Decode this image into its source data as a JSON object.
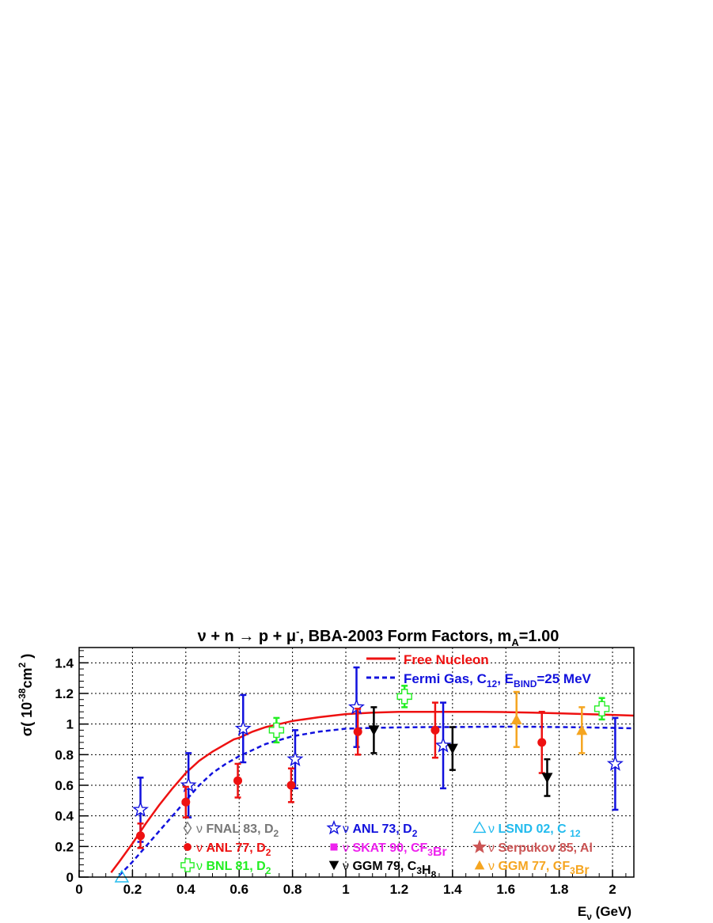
{
  "chart_data": {
    "type": "scatter",
    "title": "ν + n → p + μ⁻, BBA-2003 Form Factors, m_A=1.00",
    "title_parts": {
      "lhs": "ν + n → p + μ",
      "sup": "-",
      "rest": ", BBA-2003 Form Factors, m",
      "sub": "A",
      "tail": "=1.00"
    },
    "xlabel": "E_ν (GeV)",
    "xlabel_parts": {
      "main": "E",
      "sub": "ν",
      "unit": " (GeV)"
    },
    "ylabel": "σ( 10^-38 cm^2 )",
    "ylabel_parts": {
      "pre": "σ( 10",
      "sup1": "-38",
      "mid": "cm",
      "sup2": "2",
      "post": " )"
    },
    "xlim": [
      0,
      2.08
    ],
    "ylim": [
      0,
      1.5
    ],
    "x_ticks": [
      "0",
      "0.2",
      "0.4",
      "0.6",
      "0.8",
      "1",
      "1.2",
      "1.4",
      "1.6",
      "1.8",
      "2"
    ],
    "y_ticks": [
      "0",
      "0.2",
      "0.4",
      "0.6",
      "0.8",
      "1",
      "1.2",
      "1.4"
    ],
    "x_tick_values": [
      0,
      0.2,
      0.4,
      0.6,
      0.8,
      1.0,
      1.2,
      1.4,
      1.6,
      1.8,
      2.0
    ],
    "y_tick_values": [
      0,
      0.2,
      0.4,
      0.6,
      0.8,
      1.0,
      1.2,
      1.4
    ],
    "grid": true,
    "curves": [
      {
        "name": "Free Nucleon",
        "color": "#ee1111",
        "style": "solid",
        "x": [
          0.12,
          0.15,
          0.2,
          0.25,
          0.3,
          0.35,
          0.4,
          0.45,
          0.5,
          0.55,
          0.58,
          0.6,
          0.65,
          0.7,
          0.75,
          0.8,
          0.9,
          1.0,
          1.1,
          1.2,
          1.3,
          1.4,
          1.5,
          1.6,
          1.7,
          1.8,
          1.9,
          2.0,
          2.08
        ],
        "y": [
          0.03,
          0.1,
          0.22,
          0.35,
          0.47,
          0.58,
          0.68,
          0.76,
          0.82,
          0.87,
          0.9,
          0.91,
          0.95,
          0.98,
          1.0,
          1.02,
          1.045,
          1.065,
          1.075,
          1.08,
          1.08,
          1.08,
          1.08,
          1.078,
          1.075,
          1.07,
          1.065,
          1.06,
          1.055
        ]
      },
      {
        "name": "Fermi Gas, C_12, E_BIND=25 MeV",
        "color": "#1111dd",
        "style": "dashed",
        "x": [
          0.15,
          0.2,
          0.25,
          0.3,
          0.35,
          0.4,
          0.45,
          0.5,
          0.55,
          0.6,
          0.7,
          0.8,
          0.9,
          1.0,
          1.1,
          1.2,
          1.3,
          1.4,
          1.5,
          1.6,
          1.7,
          1.8,
          1.9,
          2.0,
          2.08
        ],
        "y": [
          0.01,
          0.1,
          0.2,
          0.3,
          0.4,
          0.5,
          0.6,
          0.68,
          0.74,
          0.79,
          0.87,
          0.92,
          0.95,
          0.97,
          0.975,
          0.978,
          0.98,
          0.98,
          0.982,
          0.983,
          0.982,
          0.98,
          0.978,
          0.975,
          0.972
        ]
      }
    ],
    "series": [
      {
        "name": "ANL 73, D₂",
        "color": "#1111dd",
        "marker": "open-star",
        "points": [
          [
            0.23,
            0.44,
            0.21
          ],
          [
            0.41,
            0.6,
            0.21
          ],
          [
            0.615,
            0.97,
            0.22
          ],
          [
            0.81,
            0.77,
            0.19
          ],
          [
            1.04,
            1.11,
            0.26
          ],
          [
            1.365,
            0.86,
            0.28
          ],
          [
            2.01,
            0.74,
            0.3
          ]
        ]
      },
      {
        "name": "ANL 77, D₂",
        "color": "#ee1111",
        "marker": "filled-circle",
        "points": [
          [
            0.23,
            0.27,
            0.08
          ],
          [
            0.4,
            0.49,
            0.1
          ],
          [
            0.595,
            0.63,
            0.11
          ],
          [
            0.795,
            0.6,
            0.11
          ],
          [
            1.045,
            0.95,
            0.15
          ],
          [
            1.335,
            0.96,
            0.18
          ],
          [
            1.735,
            0.88,
            0.2
          ]
        ]
      },
      {
        "name": "BNL 81, D₂",
        "color": "#22ee22",
        "marker": "open-cross",
        "points": [
          [
            0.74,
            0.96,
            0.08
          ],
          [
            1.22,
            1.18,
            0.07
          ],
          [
            1.96,
            1.1,
            0.07
          ]
        ]
      },
      {
        "name": "GGM 79, C₃H₈",
        "color": "#000000",
        "marker": "filled-triangle-down",
        "points": [
          [
            1.105,
            0.96,
            0.15
          ],
          [
            1.4,
            0.84,
            0.14
          ],
          [
            1.755,
            0.65,
            0.12
          ]
        ]
      },
      {
        "name": "GGM 77, CF₃Br",
        "color": "#f5a520",
        "marker": "filled-triangle-up",
        "points": [
          [
            1.64,
            1.03,
            0.18
          ],
          [
            1.885,
            0.96,
            0.15
          ]
        ]
      },
      {
        "name": "LSND 02, C₁₂",
        "color": "#22bbee",
        "marker": "open-triangle-up",
        "points": [
          [
            0.16,
            0.0,
            0.0
          ]
        ]
      }
    ],
    "legend_top": [
      {
        "label_main": "Free Nucleon",
        "color": "#ee1111",
        "style": "solid"
      },
      {
        "label_main": "Fermi Gas, C",
        "sub1": "12",
        "mid": ", E",
        "sub2": "BIND",
        "tail": "=25 MeV",
        "color": "#1111dd",
        "style": "dashed"
      }
    ],
    "legend_bottom": [
      {
        "nu": "ν",
        "label": "FNAL 83, D",
        "sub": "2",
        "sub2": "",
        "tail": "",
        "color": "#777777",
        "marker": "open-diamond"
      },
      {
        "nu": "ν",
        "label": "ANL 77, D",
        "sub": "2",
        "sub2": "",
        "tail": "",
        "color": "#ee1111",
        "marker": "filled-circle"
      },
      {
        "nu": "ν",
        "label": "BNL 81, D",
        "sub": "2",
        "sub2": "",
        "tail": "",
        "color": "#22ee22",
        "marker": "open-cross"
      },
      {
        "nu": "ν",
        "label": "ANL 73, D",
        "sub": "2",
        "sub2": "",
        "tail": "",
        "color": "#1111dd",
        "marker": "open-star"
      },
      {
        "nu": "ν",
        "label": "SKAT 90, CF",
        "sub": "3",
        "sub2": "",
        "tail": "Br",
        "color": "#ee22ee",
        "marker": "filled-square"
      },
      {
        "nu": "ν",
        "label": "GGM 79, C",
        "sub": "3",
        "mid": "H",
        "sub2": "8",
        "tail": "",
        "color": "#000000",
        "marker": "filled-triangle-down"
      },
      {
        "nu": "ν",
        "label": "LSND 02, C ",
        "sub": "12",
        "sub2": "",
        "tail": "",
        "color": "#22bbee",
        "marker": "open-triangle-up"
      },
      {
        "nu": "ν",
        "label": "Serpukov 85, Al",
        "sub": "",
        "sub2": "",
        "tail": "",
        "color": "#cc5555",
        "marker": "filled-star"
      },
      {
        "nu": "ν",
        "label": "GGM 77, CF",
        "sub": "3",
        "sub2": "",
        "tail": "Br",
        "color": "#f5a520",
        "marker": "filled-triangle-up"
      }
    ]
  }
}
